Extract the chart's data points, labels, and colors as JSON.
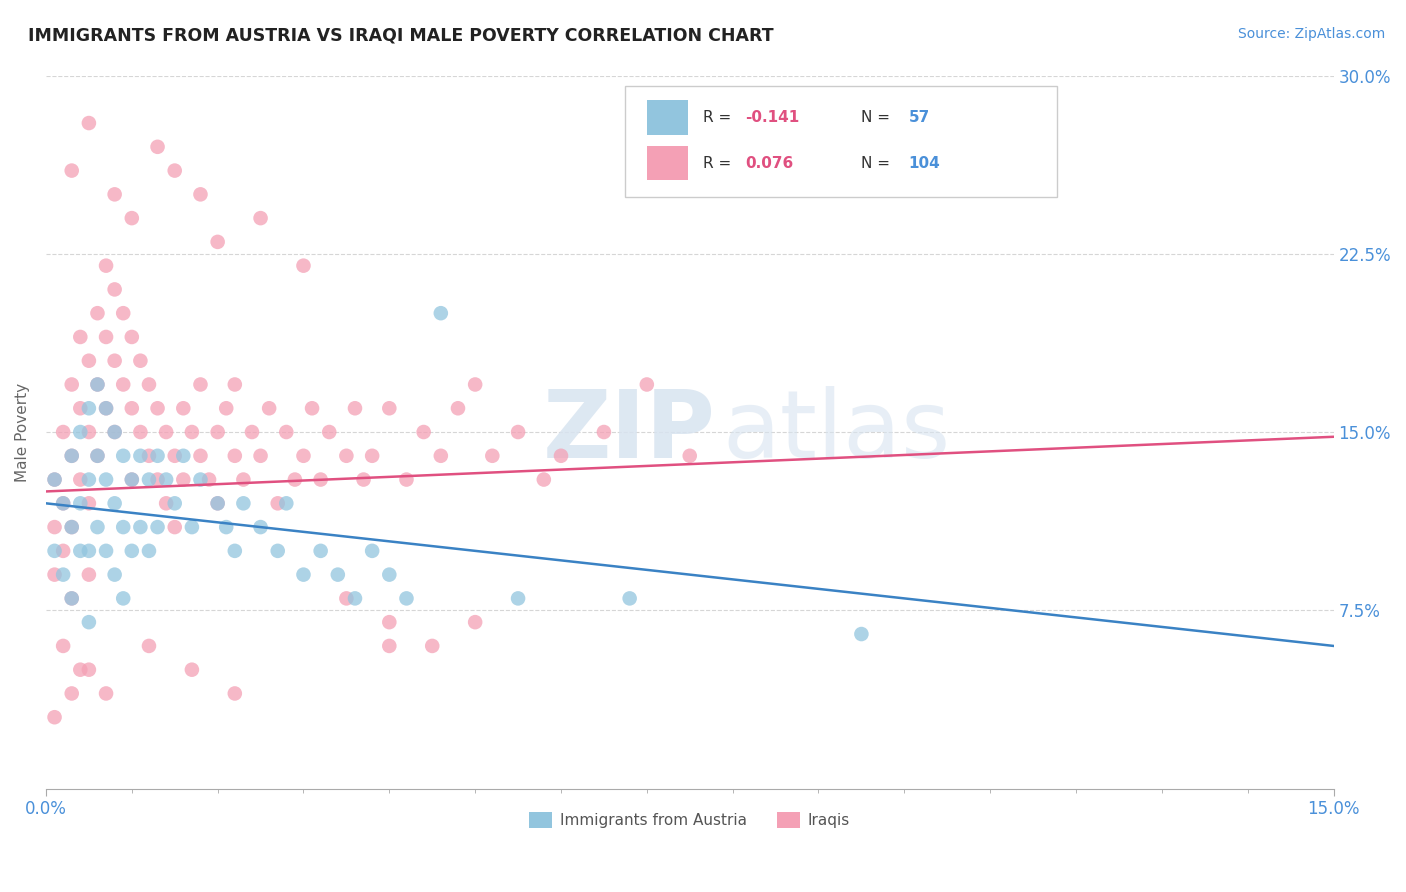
{
  "title": "IMMIGRANTS FROM AUSTRIA VS IRAQI MALE POVERTY CORRELATION CHART",
  "source_text": "Source: ZipAtlas.com",
  "ylabel": "Male Poverty",
  "xlim": [
    0.0,
    0.15
  ],
  "ylim": [
    0.0,
    0.3
  ],
  "yticks": [
    0.075,
    0.15,
    0.225,
    0.3
  ],
  "ytick_labels": [
    "7.5%",
    "15.0%",
    "22.5%",
    "30.0%"
  ],
  "xtick_labels_ends": [
    "0.0%",
    "15.0%"
  ],
  "legend_R1": "-0.141",
  "legend_N1": "57",
  "legend_R2": "0.076",
  "legend_N2": "104",
  "color_austria": "#92c5de",
  "color_iraq": "#f4a0b5",
  "trend_color_austria": "#3a82c4",
  "trend_color_iraq": "#e05080",
  "watermark_zip": "ZIP",
  "watermark_atlas": "atlas",
  "austria_trend": [
    0.12,
    0.06
  ],
  "iraq_trend": [
    0.125,
    0.148
  ],
  "austria_x": [
    0.001,
    0.001,
    0.002,
    0.002,
    0.003,
    0.003,
    0.003,
    0.004,
    0.004,
    0.004,
    0.005,
    0.005,
    0.005,
    0.005,
    0.006,
    0.006,
    0.006,
    0.007,
    0.007,
    0.007,
    0.008,
    0.008,
    0.008,
    0.009,
    0.009,
    0.009,
    0.01,
    0.01,
    0.011,
    0.011,
    0.012,
    0.012,
    0.013,
    0.013,
    0.014,
    0.015,
    0.016,
    0.017,
    0.018,
    0.02,
    0.021,
    0.022,
    0.023,
    0.025,
    0.027,
    0.028,
    0.03,
    0.032,
    0.034,
    0.036,
    0.038,
    0.04,
    0.042,
    0.046,
    0.055,
    0.068,
    0.095
  ],
  "austria_y": [
    0.13,
    0.1,
    0.12,
    0.09,
    0.14,
    0.11,
    0.08,
    0.15,
    0.12,
    0.1,
    0.16,
    0.13,
    0.1,
    0.07,
    0.17,
    0.14,
    0.11,
    0.16,
    0.13,
    0.1,
    0.15,
    0.12,
    0.09,
    0.14,
    0.11,
    0.08,
    0.13,
    0.1,
    0.14,
    0.11,
    0.13,
    0.1,
    0.14,
    0.11,
    0.13,
    0.12,
    0.14,
    0.11,
    0.13,
    0.12,
    0.11,
    0.1,
    0.12,
    0.11,
    0.1,
    0.12,
    0.09,
    0.1,
    0.09,
    0.08,
    0.1,
    0.09,
    0.08,
    0.2,
    0.08,
    0.08,
    0.065
  ],
  "iraq_x": [
    0.001,
    0.001,
    0.001,
    0.002,
    0.002,
    0.002,
    0.003,
    0.003,
    0.003,
    0.003,
    0.004,
    0.004,
    0.004,
    0.005,
    0.005,
    0.005,
    0.005,
    0.006,
    0.006,
    0.006,
    0.007,
    0.007,
    0.007,
    0.008,
    0.008,
    0.008,
    0.009,
    0.009,
    0.01,
    0.01,
    0.01,
    0.011,
    0.011,
    0.012,
    0.012,
    0.013,
    0.013,
    0.014,
    0.014,
    0.015,
    0.015,
    0.016,
    0.016,
    0.017,
    0.018,
    0.018,
    0.019,
    0.02,
    0.02,
    0.021,
    0.022,
    0.022,
    0.023,
    0.024,
    0.025,
    0.026,
    0.027,
    0.028,
    0.029,
    0.03,
    0.031,
    0.032,
    0.033,
    0.035,
    0.036,
    0.037,
    0.038,
    0.04,
    0.042,
    0.044,
    0.046,
    0.048,
    0.05,
    0.052,
    0.055,
    0.058,
    0.06,
    0.065,
    0.07,
    0.075,
    0.003,
    0.005,
    0.008,
    0.01,
    0.013,
    0.015,
    0.018,
    0.02,
    0.025,
    0.03,
    0.035,
    0.04,
    0.045,
    0.05,
    0.002,
    0.004,
    0.007,
    0.012,
    0.017,
    0.022,
    0.001,
    0.003,
    0.005,
    0.04
  ],
  "iraq_y": [
    0.13,
    0.11,
    0.09,
    0.15,
    0.12,
    0.1,
    0.17,
    0.14,
    0.11,
    0.08,
    0.19,
    0.16,
    0.13,
    0.18,
    0.15,
    0.12,
    0.09,
    0.2,
    0.17,
    0.14,
    0.22,
    0.19,
    0.16,
    0.21,
    0.18,
    0.15,
    0.2,
    0.17,
    0.19,
    0.16,
    0.13,
    0.18,
    0.15,
    0.17,
    0.14,
    0.16,
    0.13,
    0.15,
    0.12,
    0.14,
    0.11,
    0.16,
    0.13,
    0.15,
    0.14,
    0.17,
    0.13,
    0.15,
    0.12,
    0.16,
    0.14,
    0.17,
    0.13,
    0.15,
    0.14,
    0.16,
    0.12,
    0.15,
    0.13,
    0.14,
    0.16,
    0.13,
    0.15,
    0.14,
    0.16,
    0.13,
    0.14,
    0.16,
    0.13,
    0.15,
    0.14,
    0.16,
    0.17,
    0.14,
    0.15,
    0.13,
    0.14,
    0.15,
    0.17,
    0.14,
    0.26,
    0.28,
    0.25,
    0.24,
    0.27,
    0.26,
    0.25,
    0.23,
    0.24,
    0.22,
    0.08,
    0.07,
    0.06,
    0.07,
    0.06,
    0.05,
    0.04,
    0.06,
    0.05,
    0.04,
    0.03,
    0.04,
    0.05,
    0.06
  ]
}
